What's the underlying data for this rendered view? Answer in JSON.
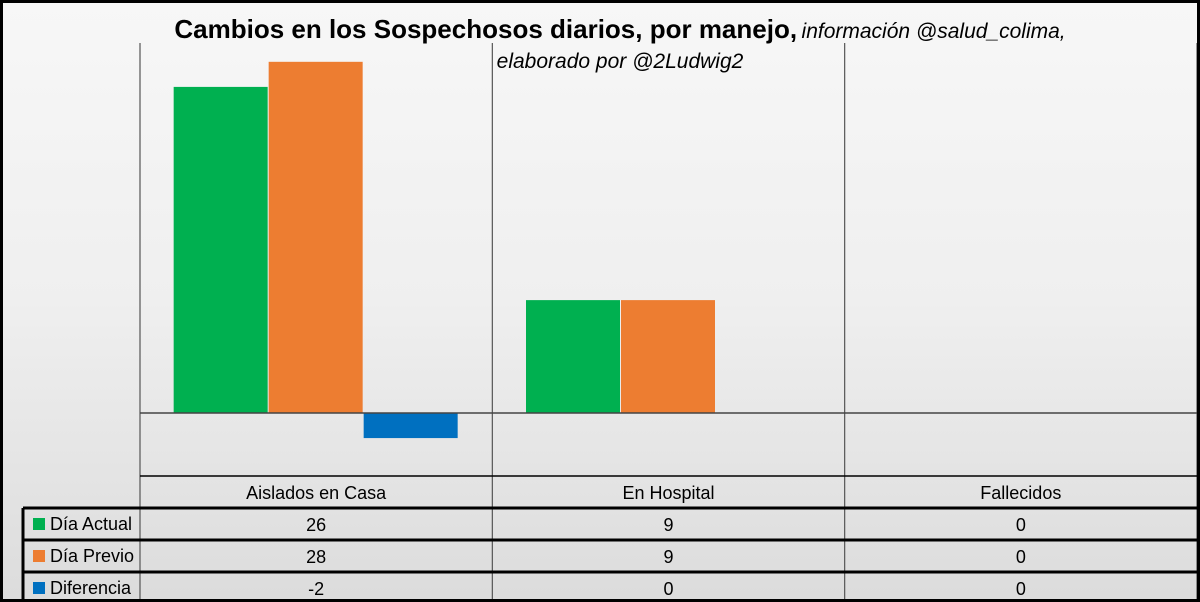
{
  "chart_data": {
    "type": "bar",
    "title": "Cambios en los Sospechosos diarios, por manejo,",
    "subtitle_line1": "información @salud_colima,",
    "subtitle_line2": "elaborado por @2Ludwig2",
    "categories": [
      "Aislados en Casa",
      "En Hospital",
      "Fallecidos"
    ],
    "series": [
      {
        "name": "Día Actual",
        "color": "#00b050",
        "values": [
          26,
          9,
          0
        ]
      },
      {
        "name": "Día Previo",
        "color": "#ed7d31",
        "values": [
          28,
          9,
          0
        ]
      },
      {
        "name": "Diferencia",
        "color": "#0070c0",
        "values": [
          -2,
          0,
          0
        ]
      }
    ],
    "ylim": [
      -2.3,
      29.5
    ],
    "grid": false,
    "legend": "data-table"
  }
}
